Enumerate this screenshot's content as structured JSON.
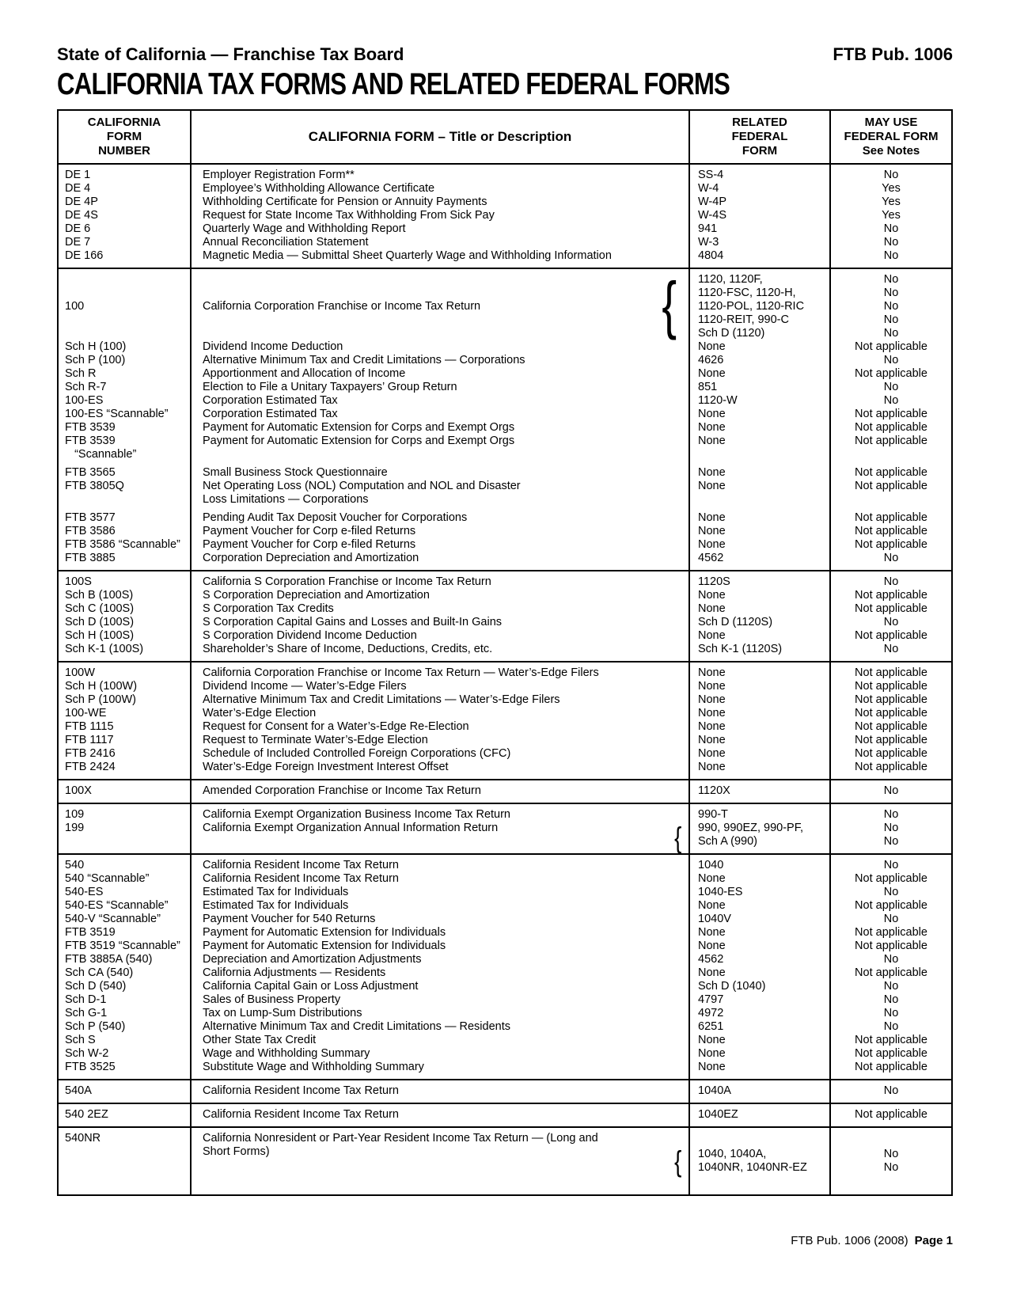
{
  "page": {
    "eyebrow_left": "State of California — Franchise Tax Board",
    "eyebrow_right": "FTB Pub. 1006",
    "title": "CALIFORNIA TAX FORMS AND RELATED FEDERAL FORMS",
    "footer_text": "FTB Pub. 1006 (2008)",
    "footer_page": "Page 1"
  },
  "table": {
    "headers": {
      "col1": [
        "CALIFORNIA",
        "FORM",
        "NUMBER"
      ],
      "col2": "CALIFORNIA FORM – Title or Description",
      "col3": [
        "RELATED",
        "FEDERAL",
        "FORM"
      ],
      "col4": [
        "MAY USE",
        "FEDERAL FORM",
        "See Notes"
      ]
    },
    "sections": [
      {
        "rows": [
          {
            "ca": [
              "DE 1"
            ],
            "desc": [
              "Employer Registration Form**"
            ],
            "fed": [
              "SS-4"
            ],
            "notes": [
              "No"
            ]
          },
          {
            "ca": [
              "DE 4"
            ],
            "desc": [
              "Employee’s Withholding Allowance Certificate"
            ],
            "fed": [
              "W-4"
            ],
            "notes": [
              "Yes"
            ]
          },
          {
            "ca": [
              "DE 4P"
            ],
            "desc": [
              "Withholding Certificate for Pension or Annuity Payments"
            ],
            "fed": [
              "W-4P"
            ],
            "notes": [
              "Yes"
            ]
          },
          {
            "ca": [
              "DE 4S"
            ],
            "desc": [
              "Request for State Income Tax Withholding From Sick Pay"
            ],
            "fed": [
              "W-4S"
            ],
            "notes": [
              "Yes"
            ]
          },
          {
            "ca": [
              "DE 6"
            ],
            "desc": [
              "Quarterly Wage and Withholding Report"
            ],
            "fed": [
              "941"
            ],
            "notes": [
              "No"
            ]
          },
          {
            "ca": [
              "DE 7"
            ],
            "desc": [
              "Annual Reconciliation Statement"
            ],
            "fed": [
              "W-3"
            ],
            "notes": [
              "No"
            ]
          },
          {
            "ca": [
              "DE 166"
            ],
            "desc": [
              "Magnetic Media — Submittal Sheet Quarterly Wage and Withholding Information"
            ],
            "fed": [
              "4804"
            ],
            "notes": [
              "No"
            ]
          }
        ]
      },
      {
        "rows": [
          {
            "ca": [
              "100"
            ],
            "desc": [
              "California Corporation Franchise or Income Tax Return"
            ],
            "fed": [
              "1120, 1120F,",
              "1120-FSC, 1120-H,",
              "1120-POL, 1120-RIC",
              "1120-REIT, 990-C",
              "Sch D (1120)"
            ],
            "notes": [
              "No",
              "No",
              "No",
              "No",
              "No"
            ],
            "brace": true,
            "vcenter": true
          },
          {
            "ca": [
              "Sch H (100)"
            ],
            "desc": [
              "Dividend Income Deduction"
            ],
            "fed": [
              "None"
            ],
            "notes": [
              "Not applicable"
            ]
          },
          {
            "ca": [
              "Sch P (100)"
            ],
            "desc": [
              "Alternative Minimum Tax and Credit Limitations — Corporations"
            ],
            "fed": [
              "4626"
            ],
            "notes": [
              "No"
            ]
          },
          {
            "ca": [
              "Sch R"
            ],
            "desc": [
              "Apportionment and Allocation of Income"
            ],
            "fed": [
              "None"
            ],
            "notes": [
              "Not applicable"
            ]
          },
          {
            "ca": [
              "Sch R-7"
            ],
            "desc": [
              "Election to File a Unitary Taxpayers’ Group Return"
            ],
            "fed": [
              "851"
            ],
            "notes": [
              "No"
            ]
          },
          {
            "ca": [
              "100-ES"
            ],
            "desc": [
              "Corporation Estimated Tax"
            ],
            "fed": [
              "1120-W"
            ],
            "notes": [
              "No"
            ]
          },
          {
            "ca": [
              "100-ES “Scannable”"
            ],
            "desc": [
              "Corporation Estimated Tax"
            ],
            "fed": [
              "None"
            ],
            "notes": [
              "Not applicable"
            ]
          },
          {
            "ca": [
              "FTB 3539"
            ],
            "desc": [
              "Payment for Automatic Extension for Corps and Exempt Orgs"
            ],
            "fed": [
              "None"
            ],
            "notes": [
              "Not applicable"
            ]
          },
          {
            "ca": [
              "FTB 3539",
              "   “Scannable”"
            ],
            "desc": [
              "Payment for Automatic Extension for Corps and Exempt Orgs"
            ],
            "fed": [
              "None"
            ],
            "notes": [
              "Not applicable"
            ]
          },
          {
            "spacer": true
          },
          {
            "ca": [
              "FTB 3565"
            ],
            "desc": [
              "Small Business Stock Questionnaire"
            ],
            "fed": [
              "None"
            ],
            "notes": [
              "Not applicable"
            ]
          },
          {
            "ca": [
              "FTB 3805Q"
            ],
            "desc": [
              "Net Operating Loss (NOL) Computation and NOL and Disaster",
              "Loss Limitations — Corporations"
            ],
            "fed": [
              "None"
            ],
            "notes": [
              "Not applicable"
            ]
          },
          {
            "spacer": true
          },
          {
            "ca": [
              "FTB 3577"
            ],
            "desc": [
              "Pending Audit Tax Deposit Voucher for Corporations"
            ],
            "fed": [
              "None"
            ],
            "notes": [
              "Not applicable"
            ]
          },
          {
            "ca": [
              "FTB 3586"
            ],
            "desc": [
              "Payment Voucher for Corp e-filed Returns"
            ],
            "fed": [
              "None"
            ],
            "notes": [
              "Not applicable"
            ]
          },
          {
            "ca": [
              "FTB 3586 “Scannable”"
            ],
            "desc": [
              "Payment Voucher for Corp e-filed Returns"
            ],
            "fed": [
              "None"
            ],
            "notes": [
              "Not applicable"
            ]
          },
          {
            "ca": [
              "FTB 3885"
            ],
            "desc": [
              "Corporation Depreciation and Amortization"
            ],
            "fed": [
              "4562"
            ],
            "notes": [
              "No"
            ]
          }
        ]
      },
      {
        "rows": [
          {
            "ca": [
              "100S"
            ],
            "desc": [
              "California S Corporation Franchise or Income Tax Return"
            ],
            "fed": [
              "1120S"
            ],
            "notes": [
              "No"
            ]
          },
          {
            "ca": [
              "Sch B (100S)"
            ],
            "desc": [
              "S Corporation Depreciation and Amortization"
            ],
            "fed": [
              "None"
            ],
            "notes": [
              "Not applicable"
            ]
          },
          {
            "ca": [
              "Sch C (100S)"
            ],
            "desc": [
              "S Corporation Tax Credits"
            ],
            "fed": [
              "None"
            ],
            "notes": [
              "Not applicable"
            ]
          },
          {
            "ca": [
              "Sch D (100S)"
            ],
            "desc": [
              "S Corporation Capital Gains and Losses and Built-In Gains"
            ],
            "fed": [
              "Sch D (1120S)"
            ],
            "notes": [
              "No"
            ]
          },
          {
            "ca": [
              "Sch H (100S)"
            ],
            "desc": [
              "S Corporation Dividend Income Deduction"
            ],
            "fed": [
              "None"
            ],
            "notes": [
              "Not applicable"
            ]
          },
          {
            "ca": [
              "Sch K-1 (100S)"
            ],
            "desc": [
              "Shareholder’s Share of Income, Deductions, Credits, etc."
            ],
            "fed": [
              "Sch K-1 (1120S)"
            ],
            "notes": [
              "No"
            ]
          }
        ]
      },
      {
        "rows": [
          {
            "ca": [
              "100W"
            ],
            "desc": [
              "California Corporation Franchise or Income Tax Return — Water’s-Edge Filers"
            ],
            "fed": [
              "None"
            ],
            "notes": [
              "Not applicable"
            ]
          },
          {
            "ca": [
              "Sch H (100W)"
            ],
            "desc": [
              "Dividend Income — Water’s-Edge Filers"
            ],
            "fed": [
              "None"
            ],
            "notes": [
              "Not applicable"
            ]
          },
          {
            "ca": [
              "Sch P (100W)"
            ],
            "desc": [
              "Alternative Minimum Tax and Credit Limitations — Water’s-Edge Filers"
            ],
            "fed": [
              "None"
            ],
            "notes": [
              "Not applicable"
            ]
          },
          {
            "ca": [
              "100-WE"
            ],
            "desc": [
              "Water’s-Edge Election"
            ],
            "fed": [
              "None"
            ],
            "notes": [
              "Not applicable"
            ]
          },
          {
            "ca": [
              "FTB 1115"
            ],
            "desc": [
              "Request for Consent for a Water’s-Edge Re-Election"
            ],
            "fed": [
              "None"
            ],
            "notes": [
              "Not applicable"
            ]
          },
          {
            "ca": [
              "FTB 1117"
            ],
            "desc": [
              "Request to Terminate Water’s-Edge Election"
            ],
            "fed": [
              "None"
            ],
            "notes": [
              "Not applicable"
            ]
          },
          {
            "ca": [
              "FTB 2416"
            ],
            "desc": [
              "Schedule of Included Controlled Foreign Corporations (CFC)"
            ],
            "fed": [
              "None"
            ],
            "notes": [
              "Not applicable"
            ]
          },
          {
            "ca": [
              "FTB 2424"
            ],
            "desc": [
              "Water’s-Edge Foreign Investment Interest Offset"
            ],
            "fed": [
              "None"
            ],
            "notes": [
              "Not applicable"
            ]
          }
        ]
      },
      {
        "rows": [
          {
            "ca": [
              "100X"
            ],
            "desc": [
              "Amended Corporation Franchise or Income Tax Return"
            ],
            "fed": [
              "1120X"
            ],
            "notes": [
              "No"
            ]
          }
        ]
      },
      {
        "rows": [
          {
            "ca": [
              "109"
            ],
            "desc": [
              "California Exempt Organization Business Income Tax Return"
            ],
            "fed": [
              "990-T"
            ],
            "notes": [
              "No"
            ]
          },
          {
            "ca": [
              "199"
            ],
            "desc": [
              "California Exempt Organization Annual Information Return"
            ],
            "fed": [
              "990, 990EZ, 990-PF,",
              "Sch A (990)"
            ],
            "notes": [
              "No",
              "No"
            ],
            "brace": true
          }
        ]
      },
      {
        "rows": [
          {
            "ca": [
              "540"
            ],
            "desc": [
              "California Resident Income Tax Return"
            ],
            "fed": [
              "1040"
            ],
            "notes": [
              "No"
            ]
          },
          {
            "ca": [
              "540 “Scannable”"
            ],
            "desc": [
              "California Resident Income Tax Return"
            ],
            "fed": [
              "None"
            ],
            "notes": [
              "Not applicable"
            ]
          },
          {
            "ca": [
              "540-ES"
            ],
            "desc": [
              "Estimated Tax for Individuals"
            ],
            "fed": [
              "1040-ES"
            ],
            "notes": [
              "No"
            ]
          },
          {
            "ca": [
              "540-ES “Scannable”"
            ],
            "desc": [
              "Estimated Tax for Individuals"
            ],
            "fed": [
              "None"
            ],
            "notes": [
              "Not applicable"
            ]
          },
          {
            "ca": [
              "540-V “Scannable”"
            ],
            "desc": [
              "Payment Voucher for 540 Returns"
            ],
            "fed": [
              "1040V"
            ],
            "notes": [
              "No"
            ]
          },
          {
            "ca": [
              "FTB 3519"
            ],
            "desc": [
              "Payment for Automatic Extension for Individuals"
            ],
            "fed": [
              "None"
            ],
            "notes": [
              "Not applicable"
            ]
          },
          {
            "ca": [
              "FTB 3519 “Scannable”"
            ],
            "desc": [
              "Payment for Automatic Extension for Individuals"
            ],
            "fed": [
              "None"
            ],
            "notes": [
              "Not applicable"
            ]
          },
          {
            "ca": [
              "FTB 3885A (540)"
            ],
            "desc": [
              "Depreciation and Amortization Adjustments"
            ],
            "fed": [
              "4562"
            ],
            "notes": [
              "No"
            ]
          },
          {
            "ca": [
              "Sch CA (540)"
            ],
            "desc": [
              "California Adjustments — Residents"
            ],
            "fed": [
              "None"
            ],
            "notes": [
              "Not applicable"
            ]
          },
          {
            "ca": [
              "Sch D (540)"
            ],
            "desc": [
              "California Capital Gain or Loss Adjustment"
            ],
            "fed": [
              "Sch D (1040)"
            ],
            "notes": [
              "No"
            ]
          },
          {
            "ca": [
              "Sch D-1"
            ],
            "desc": [
              "Sales of Business Property"
            ],
            "fed": [
              "4797"
            ],
            "notes": [
              "No"
            ]
          },
          {
            "ca": [
              "Sch G-1"
            ],
            "desc": [
              "Tax on Lump-Sum Distributions"
            ],
            "fed": [
              "4972"
            ],
            "notes": [
              "No"
            ]
          },
          {
            "ca": [
              "Sch P (540)"
            ],
            "desc": [
              "Alternative Minimum Tax and Credit Limitations — Residents"
            ],
            "fed": [
              "6251"
            ],
            "notes": [
              "No"
            ]
          },
          {
            "ca": [
              "Sch S"
            ],
            "desc": [
              "Other State Tax Credit"
            ],
            "fed": [
              "None"
            ],
            "notes": [
              "Not applicable"
            ]
          },
          {
            "ca": [
              "Sch W-2"
            ],
            "desc": [
              "Wage and Withholding Summary"
            ],
            "fed": [
              "None"
            ],
            "notes": [
              "Not applicable"
            ]
          },
          {
            "ca": [
              "FTB 3525"
            ],
            "desc": [
              "Substitute Wage and Withholding Summary"
            ],
            "fed": [
              "None"
            ],
            "notes": [
              "Not applicable"
            ]
          }
        ]
      },
      {
        "rows": [
          {
            "ca": [
              "540A"
            ],
            "desc": [
              "California Resident Income Tax Return"
            ],
            "fed": [
              "1040A"
            ],
            "notes": [
              "No"
            ]
          }
        ]
      },
      {
        "rows": [
          {
            "ca": [
              "540 2EZ"
            ],
            "desc": [
              "California Resident Income Tax Return"
            ],
            "fed": [
              "1040EZ"
            ],
            "notes": [
              "Not applicable"
            ]
          }
        ]
      },
      {
        "rows": [
          {
            "ca": [
              "540NR"
            ],
            "desc": [
              "California Nonresident or Part-Year Resident Income Tax Return — (Long and",
              "Short Forms)"
            ],
            "fed": [
              "1040, 1040A,",
              "1040NR, 1040NR-EZ"
            ],
            "notes": [
              "No",
              "No"
            ],
            "brace": true,
            "fedcenter": true,
            "tall": true
          }
        ]
      }
    ]
  }
}
